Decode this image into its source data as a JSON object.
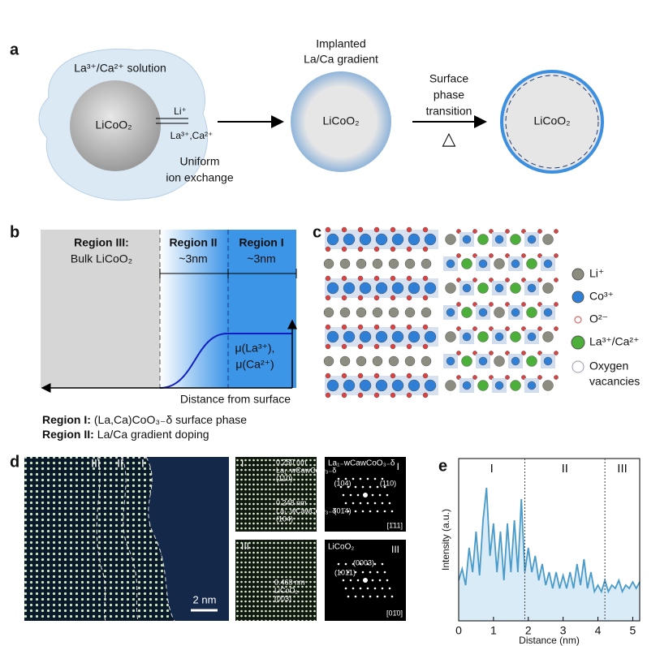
{
  "panel_labels": [
    "a",
    "b",
    "c",
    "d",
    "e"
  ],
  "a": {
    "solution": "La³⁺/Ca²⁺ solution",
    "core1": "LiCoO₂",
    "li": "Li⁺",
    "la_ca": "La³⁺,Ca²⁺",
    "exchange": [
      "Uniform",
      "ion exchange"
    ],
    "implanted": [
      "Implanted",
      "La/Ca gradient"
    ],
    "core2": "LiCoO₂",
    "transition": [
      "Surface",
      "phase",
      "transition"
    ],
    "heat": "△",
    "core3": "LiCoO₂"
  },
  "b": {
    "region3": "Region III:",
    "bulk": "Bulk LiCoO₂",
    "region2": "Region II",
    "region1": "Region I",
    "width2": "~3nm",
    "width1": "~3nm",
    "mu": [
      "μ(La³⁺),",
      "μ(Ca²⁺)"
    ],
    "xlabel": "Distance from surface"
  },
  "notes": [
    {
      "label": "Region I:",
      "text": "(La,Ca)CoO₃₋δ surface phase"
    },
    {
      "label": "Region II:",
      "text": "La/Ca gradient doping"
    }
  ],
  "c": {
    "legend": [
      "Li⁺",
      "Co³⁺",
      "O²⁻",
      "La³⁺/Ca²⁺"
    ],
    "vacancy": [
      "Oxygen",
      "vacancies"
    ]
  },
  "d": {
    "regions": [
      "III",
      "II",
      "I"
    ],
    "scale": "2 nm",
    "inset1": {
      "region": "I",
      "d1": "0.250 nm",
      "phase1": "La₁₋wCawCoO₃₋δ",
      "plane1": "(110)",
      "d2": "0.248 nm",
      "phase2": "La₁₋wCawCoO₃₋δ",
      "plane2": "(104)"
    },
    "inset2": {
      "region": "III",
      "d": "0.463 nm",
      "phase": "LiCoO₂",
      "plane": "(003)"
    },
    "fft1": {
      "title": "La₁₋wCawCoO₃₋δ",
      "region": "I",
      "spots": [
        "(104)",
        "(110)",
        "(01̄4)"
      ],
      "zone": "[1̄11]"
    },
    "fft2": {
      "title": "LiCoO₂",
      "region": "III",
      "spots": [
        "(0003)",
        "(101̄1)"
      ],
      "zone": "[01̄0]"
    }
  },
  "chart_data": {
    "type": "line",
    "xlabel": "Distance (nm)",
    "ylabel": "Intensity (a.u.)",
    "region_labels": [
      "I",
      "II",
      "III"
    ],
    "region_boundaries": [
      1.9,
      4.2
    ],
    "color": "#4a9bc9",
    "xlim": [
      0,
      5.2
    ],
    "xticks": [
      0,
      1,
      2,
      3,
      4,
      5
    ],
    "ylim": [
      0,
      1
    ],
    "x": [
      0.0,
      0.1,
      0.2,
      0.3,
      0.4,
      0.5,
      0.6,
      0.7,
      0.8,
      0.9,
      1.0,
      1.1,
      1.2,
      1.3,
      1.4,
      1.5,
      1.6,
      1.7,
      1.8,
      1.9,
      2.0,
      2.1,
      2.2,
      2.3,
      2.4,
      2.5,
      2.6,
      2.7,
      2.8,
      2.9,
      3.0,
      3.1,
      3.2,
      3.3,
      3.4,
      3.5,
      3.6,
      3.7,
      3.8,
      3.9,
      4.0,
      4.1,
      4.2,
      4.3,
      4.4,
      4.5,
      4.6,
      4.7,
      4.8,
      4.9,
      5.0,
      5.1,
      5.2
    ],
    "values": [
      0.25,
      0.32,
      0.22,
      0.45,
      0.3,
      0.55,
      0.28,
      0.62,
      0.82,
      0.4,
      0.6,
      0.3,
      0.55,
      0.25,
      0.6,
      0.3,
      0.62,
      0.3,
      0.75,
      0.3,
      0.45,
      0.3,
      0.4,
      0.25,
      0.35,
      0.22,
      0.3,
      0.2,
      0.3,
      0.2,
      0.28,
      0.2,
      0.3,
      0.2,
      0.35,
      0.22,
      0.38,
      0.2,
      0.3,
      0.18,
      0.22,
      0.18,
      0.25,
      0.18,
      0.22,
      0.2,
      0.25,
      0.18,
      0.22,
      0.2,
      0.24,
      0.2,
      0.24
    ]
  }
}
